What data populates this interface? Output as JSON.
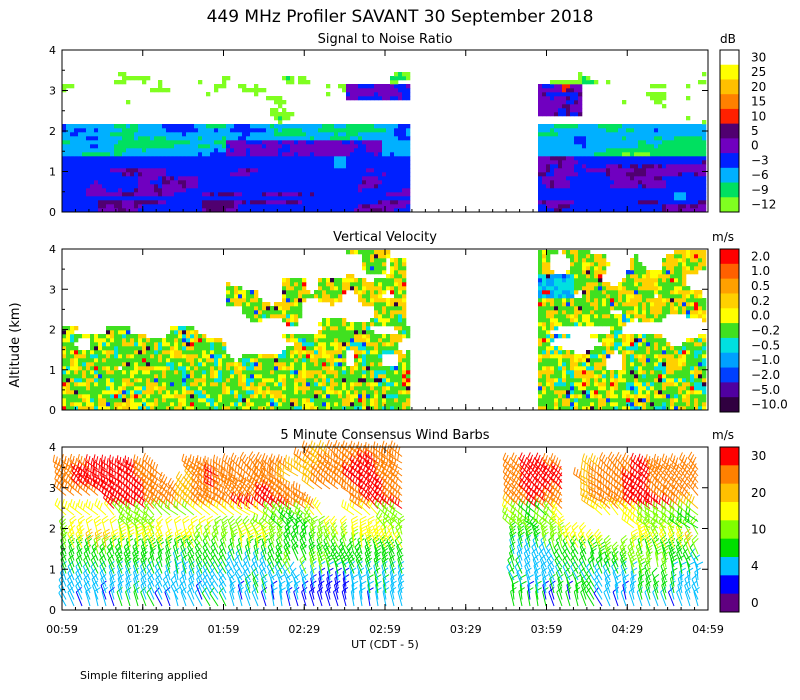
{
  "figure": {
    "title": "449 MHz Profiler SAVANT 30 September 2018",
    "ylabel": "Altitude (km)",
    "xlabel": "UT (CDT - 5)",
    "footnote": "Simple filtering applied"
  },
  "chart_data": [
    {
      "type": "heatmap",
      "title": "Signal to Noise Ratio",
      "colorbar_unit": "dB",
      "colorbar_labels": [
        "30",
        "25",
        "20",
        "15",
        "10",
        "5",
        "0",
        "−3",
        "−6",
        "−9",
        "−12"
      ],
      "colors": [
        "#ffffff",
        "#ffff00",
        "#ffc000",
        "#ff8000",
        "#ff2000",
        "#500070",
        "#7000c0",
        "#0020ff",
        "#00b0ff",
        "#00e060",
        "#80ff20"
      ],
      "ylim": [
        0,
        4
      ],
      "yticks": [
        "0",
        "1",
        "2",
        "3",
        "4"
      ],
      "data_gap_utc": [
        "03:09",
        "03:49"
      ]
    },
    {
      "type": "heatmap",
      "title": "Vertical Velocity",
      "colorbar_unit": "m/s",
      "colorbar_labels": [
        "2.0",
        "1.0",
        "0.5",
        "0.2",
        "0.0",
        "−0.2",
        "−0.5",
        "−1.0",
        "−2.0",
        "−5.0",
        "−10.0"
      ],
      "colors": [
        "#ff0000",
        "#ff6000",
        "#ffa000",
        "#ffd000",
        "#ffff00",
        "#40e020",
        "#00e0e0",
        "#00a0ff",
        "#0040ff",
        "#5000a0",
        "#300040"
      ],
      "ylim": [
        0,
        4
      ],
      "yticks": [
        "0",
        "1",
        "2",
        "3",
        "4"
      ],
      "data_gap_utc": [
        "03:09",
        "03:49"
      ]
    },
    {
      "type": "scatter",
      "title": "5 Minute Consensus Wind Barbs",
      "colorbar_unit": "m/s",
      "colorbar_labels": [
        "30",
        "20",
        "10",
        "4",
        "0"
      ],
      "colors": [
        "#ff0000",
        "#ff8000",
        "#ffc000",
        "#ffff00",
        "#80ff00",
        "#00e000",
        "#00c0ff",
        "#0000ff",
        "#600080"
      ],
      "ylim": [
        0,
        4
      ],
      "yticks": [
        "0",
        "1",
        "2",
        "3",
        "4"
      ],
      "data_gap_utc": [
        "03:09",
        "03:44"
      ]
    }
  ],
  "x_axis": {
    "ticks": [
      "00:59",
      "01:29",
      "01:59",
      "02:29",
      "02:59",
      "03:29",
      "03:59",
      "04:29",
      "04:59"
    ]
  }
}
